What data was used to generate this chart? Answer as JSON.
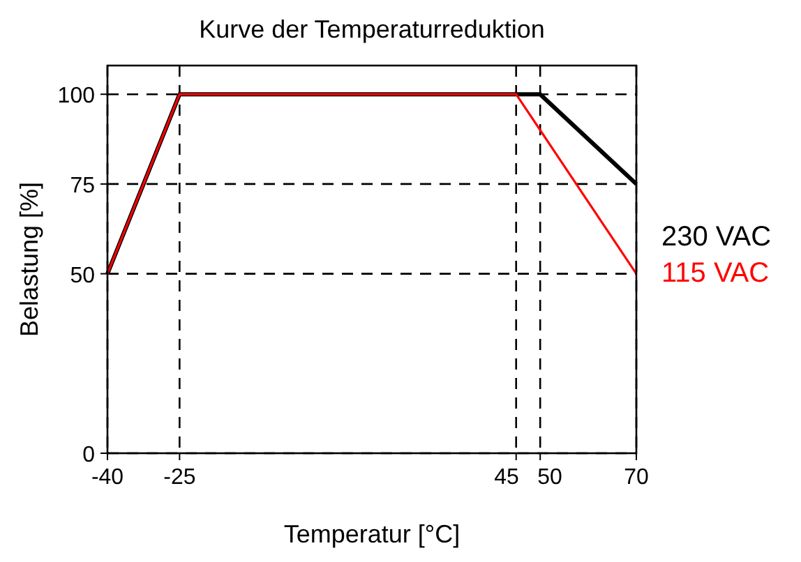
{
  "chart_data": {
    "type": "line",
    "title": "Kurve der Temperaturreduktion",
    "xlabel": "Temperatur [°C]",
    "ylabel": "Belastung [%]",
    "xlim": [
      -40,
      70
    ],
    "xticks": [
      -40,
      -25,
      45,
      50,
      70
    ],
    "ylim": [
      0,
      108
    ],
    "yticks": [
      0,
      50,
      75,
      100
    ],
    "grid": true,
    "legend": "right",
    "marker": "none",
    "series": [
      {
        "name": "230 VAC",
        "color": "#000000",
        "x": [
          -40,
          -25,
          50,
          70
        ],
        "values": [
          50,
          100,
          100,
          75
        ]
      },
      {
        "name": "115 VAC",
        "color": "#ff0000",
        "x": [
          -40,
          -25,
          45,
          70
        ],
        "values": [
          50,
          100,
          100,
          50
        ]
      }
    ]
  }
}
